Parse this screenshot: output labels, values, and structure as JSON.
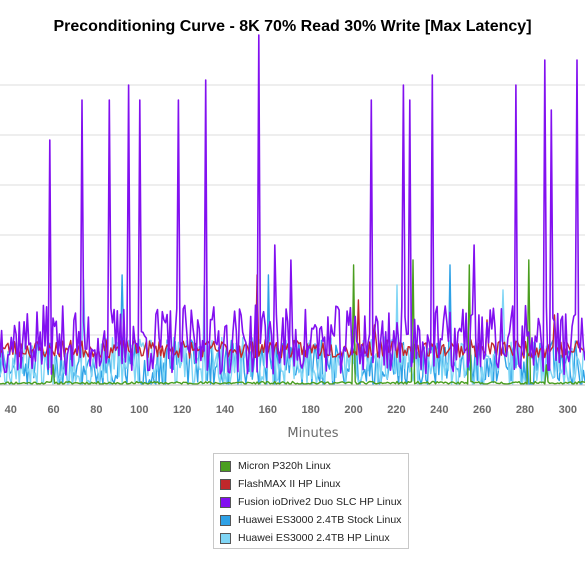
{
  "chart_data": {
    "type": "line",
    "title": "Preconditioning Curve - 8K 70% Read 30% Write [Max Latency]",
    "xlabel": "Minutes",
    "ylabel": "",
    "xlim": [
      35,
      308
    ],
    "ylim": [
      0,
      340
    ],
    "x_ticks": [
      40,
      60,
      80,
      100,
      120,
      140,
      160,
      180,
      200,
      220,
      240,
      260,
      280,
      300
    ],
    "y_gridlines": [
      50,
      100,
      150,
      200,
      250,
      300
    ],
    "grid": true,
    "legend_position": "bottom",
    "series": [
      {
        "name": "Micron P320h Linux",
        "color": "#4a9e1f",
        "base": 2,
        "amp": 1.5,
        "seed": 11,
        "spikes": [
          [
            60,
            20
          ],
          [
            200,
            120
          ],
          [
            228,
            125
          ],
          [
            254,
            120
          ],
          [
            282,
            125
          ],
          [
            290,
            20
          ]
        ]
      },
      {
        "name": "FlashMAX II HP Linux",
        "color": "#c0282b",
        "base": 36,
        "amp": 9,
        "seed": 23,
        "spikes": [
          [
            155,
            110
          ],
          [
            202,
            85
          ],
          [
            210,
            60
          ],
          [
            262,
            65
          ],
          [
            294,
            70
          ]
        ]
      },
      {
        "name": "Fusion ioDrive2 Duo SLC HP Linux",
        "color": "#8210f0",
        "base": 45,
        "amp": 35,
        "seed": 37,
        "spikes": [
          [
            58,
            245
          ],
          [
            73,
            285
          ],
          [
            86,
            285
          ],
          [
            95,
            300
          ],
          [
            100,
            285
          ],
          [
            118,
            285
          ],
          [
            131,
            305
          ],
          [
            156,
            350
          ],
          [
            163,
            140
          ],
          [
            171,
            125
          ],
          [
            208,
            285
          ],
          [
            223,
            300
          ],
          [
            226,
            285
          ],
          [
            237,
            310
          ],
          [
            256,
            140
          ],
          [
            276,
            300
          ],
          [
            289,
            325
          ],
          [
            292,
            275
          ],
          [
            304,
            325
          ]
        ]
      },
      {
        "name": "Huawei ES3000 2.4TB Stock Linux",
        "color": "#2ea1e6",
        "base": 20,
        "amp": 25,
        "seed": 51,
        "spikes": [
          [
            92,
            110
          ],
          [
            160,
            110
          ],
          [
            245,
            120
          ]
        ]
      },
      {
        "name": "Huawei ES3000 2.4TB HP Linux",
        "color": "#7fd5f5",
        "base": 22,
        "amp": 26,
        "seed": 67,
        "spikes": [
          [
            74,
            105
          ],
          [
            130,
            100
          ],
          [
            220,
            100
          ],
          [
            270,
            95
          ]
        ]
      }
    ]
  }
}
